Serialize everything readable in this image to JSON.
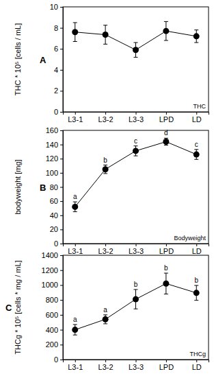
{
  "chart_data": [
    {
      "type": "line",
      "panel_label": "A",
      "title": "THC",
      "y_label": "THC * 10⁵ [cells / mL]",
      "categories": [
        "L3-1",
        "L3-2",
        "L3-3",
        "LPD",
        "LD"
      ],
      "values": [
        7.6,
        7.35,
        5.9,
        7.7,
        7.2
      ],
      "errors": [
        0.9,
        0.9,
        0.7,
        0.9,
        0.6
      ],
      "color": "#000000",
      "marker": "circle",
      "ylim": [
        0,
        10
      ],
      "yticks": [
        0,
        2,
        4,
        6,
        8,
        10
      ]
    },
    {
      "type": "line",
      "panel_label": "B",
      "title": "Bodyweight",
      "y_label": "bodyweight [mg]",
      "categories": [
        "L3-1",
        "L3-2",
        "L3-3",
        "LPD",
        "LD"
      ],
      "values": [
        52,
        105,
        131,
        144,
        126
      ],
      "errors": [
        7,
        6,
        7,
        5,
        7
      ],
      "point_labels": [
        "a",
        "b",
        "c",
        "d",
        "c"
      ],
      "color": "#000000",
      "marker": "circle",
      "ylim": [
        0,
        160
      ],
      "yticks": [
        0,
        20,
        40,
        60,
        80,
        100,
        120,
        140,
        160
      ]
    },
    {
      "type": "line",
      "panel_label": "C",
      "title": "THCg",
      "y_label": "THCg * 10⁵ [cells * mg / mL]",
      "categories": [
        "L3-1",
        "L3-2",
        "L3-3",
        "LPD",
        "LD"
      ],
      "values": [
        400,
        540,
        810,
        1020,
        895
      ],
      "errors": [
        70,
        60,
        130,
        140,
        100
      ],
      "point_labels": [
        "a",
        "a",
        "b",
        "b",
        "b"
      ],
      "color": "#000000",
      "marker": "circle",
      "ylim": [
        0,
        1400
      ],
      "yticks": [
        0,
        200,
        400,
        600,
        800,
        1000,
        1200,
        1400
      ]
    }
  ]
}
